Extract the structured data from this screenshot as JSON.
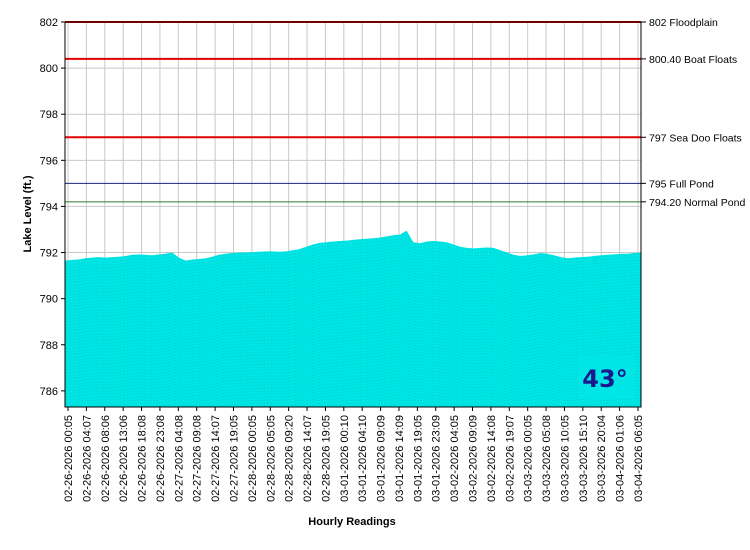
{
  "chart_data": {
    "type": "area",
    "ylabel": "Lake Level (ft.)",
    "xlabel": "Hourly Readings",
    "ylim": [
      785.3,
      802
    ],
    "y_ticks": [
      786,
      788,
      790,
      792,
      794,
      796,
      798,
      800,
      802
    ],
    "grid": true,
    "area_color": "#00e5e5",
    "x_tick_labels": [
      "02-26-2026 00:05",
      "02-26-2026 04:07",
      "02-26-2026 08:06",
      "02-26-2026 13:06",
      "02-26-2026 18:08",
      "02-26-2026 23:08",
      "02-27-2026 04:08",
      "02-27-2026 09:08",
      "02-27-2026 14:07",
      "02-27-2026 19:05",
      "02-28-2026 00:05",
      "02-28-2026 05:05",
      "02-28-2026 09:20",
      "02-28-2026 14:07",
      "02-28-2026 19:05",
      "03-01-2026 00:10",
      "03-01-2026 04:10",
      "03-01-2026 09:09",
      "03-01-2026 14:09",
      "03-01-2026 19:05",
      "03-01-2026 23:09",
      "03-02-2026 04:05",
      "03-02-2026 09:09",
      "03-02-2026 14:08",
      "03-02-2026 19:07",
      "03-03-2026 00:05",
      "03-03-2026 05:08",
      "03-03-2026 10:05",
      "03-03-2026 15:10",
      "03-03-2026 20:04",
      "03-04-2026 01:06",
      "03-04-2026 06:05"
    ],
    "series": [
      {
        "type": "area",
        "values": [
          791.65,
          791.68,
          791.7,
          791.75,
          791.78,
          791.8,
          791.78,
          791.8,
          791.82,
          791.85,
          791.9,
          791.92,
          791.9,
          791.88,
          791.92,
          791.95,
          792.0,
          791.78,
          791.65,
          791.7,
          791.72,
          791.75,
          791.82,
          791.9,
          791.95,
          791.98,
          792.0,
          792.0,
          792.02,
          792.03,
          792.05,
          792.05,
          792.03,
          792.05,
          792.1,
          792.15,
          792.25,
          792.35,
          792.42,
          792.45,
          792.48,
          792.5,
          792.52,
          792.55,
          792.58,
          792.6,
          792.62,
          792.65,
          792.7,
          792.75,
          792.78,
          792.95,
          792.45,
          792.4,
          792.48,
          792.5,
          792.48,
          792.45,
          792.35,
          792.25,
          792.2,
          792.18,
          792.2,
          792.22,
          792.2,
          792.1,
          792.0,
          791.9,
          791.85,
          791.88,
          791.92,
          791.98,
          791.95,
          791.88,
          791.8,
          791.75,
          791.78,
          791.8,
          791.82,
          791.85,
          791.88,
          791.9,
          791.92,
          791.95,
          791.95,
          791.98,
          792.0
        ]
      }
    ],
    "reference_lines": [
      {
        "value": 802,
        "label": "802 Floodplain",
        "color": "#e00000"
      },
      {
        "value": 800.4,
        "label": "800.40 Boat Floats",
        "color": "#e00000"
      },
      {
        "value": 797,
        "label": "797 Sea Doo Floats",
        "color": "#e00000"
      },
      {
        "value": 795,
        "label": "795 Full Pond",
        "color": "#1a237e"
      },
      {
        "value": 794.2,
        "label": "794.20 Normal Pond",
        "color": "#2e7d32"
      }
    ],
    "temperature_badge": {
      "text": "43°",
      "background": "#00e5e5",
      "color": "#1a1a8c"
    }
  }
}
